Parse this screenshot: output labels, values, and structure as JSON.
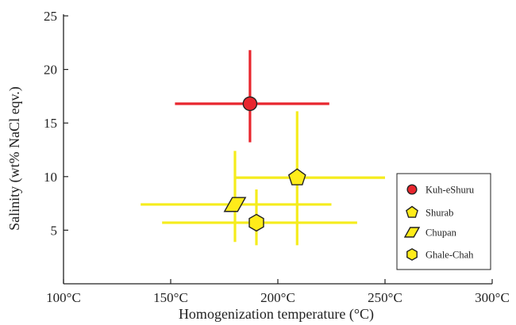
{
  "chart_data": {
    "type": "scatter",
    "xlabel": "Homogenization temperature (°C)",
    "ylabel": "Salinity (wt% NaCl eqv.)",
    "xlim": [
      100,
      300
    ],
    "ylim": [
      0,
      25
    ],
    "x_ticks": [
      {
        "value": 100,
        "label": "100°C"
      },
      {
        "value": 150,
        "label": "150°C"
      },
      {
        "value": 200,
        "label": "200°C"
      },
      {
        "value": 250,
        "label": "250°C"
      },
      {
        "value": 300,
        "label": "300°C"
      }
    ],
    "y_ticks": [
      {
        "value": 5,
        "label": "5"
      },
      {
        "value": 10,
        "label": "10"
      },
      {
        "value": 15,
        "label": "15"
      },
      {
        "value": 20,
        "label": "20"
      },
      {
        "value": 25,
        "label": "25"
      }
    ],
    "grid": false,
    "legend_position": "right",
    "series": [
      {
        "name": "Kuh-eShuru",
        "marker": "circle",
        "color": "#e8262e",
        "bar_color": "#e8262e",
        "x": 187,
        "y": 16.8,
        "x_range": [
          152,
          224
        ],
        "y_range": [
          13.2,
          21.8
        ]
      },
      {
        "name": "Shurab",
        "marker": "pentagon",
        "color": "#ffec1a",
        "bar_color": "#f5ec1c",
        "x": 209,
        "y": 9.9,
        "x_range": [
          180,
          250
        ],
        "y_range": [
          3.6,
          16.1
        ]
      },
      {
        "name": "Chupan",
        "marker": "parallelogram",
        "color": "#ffec1a",
        "bar_color": "#f5ec1c",
        "x": 180,
        "y": 7.4,
        "x_range": [
          136,
          225
        ],
        "y_range": [
          3.9,
          12.4
        ]
      },
      {
        "name": "Ghale-Chah",
        "marker": "hexagon",
        "color": "#ffec1a",
        "bar_color": "#f5ec1c",
        "x": 190,
        "y": 5.7,
        "x_range": [
          146,
          237
        ],
        "y_range": [
          3.6,
          8.8
        ]
      }
    ]
  }
}
